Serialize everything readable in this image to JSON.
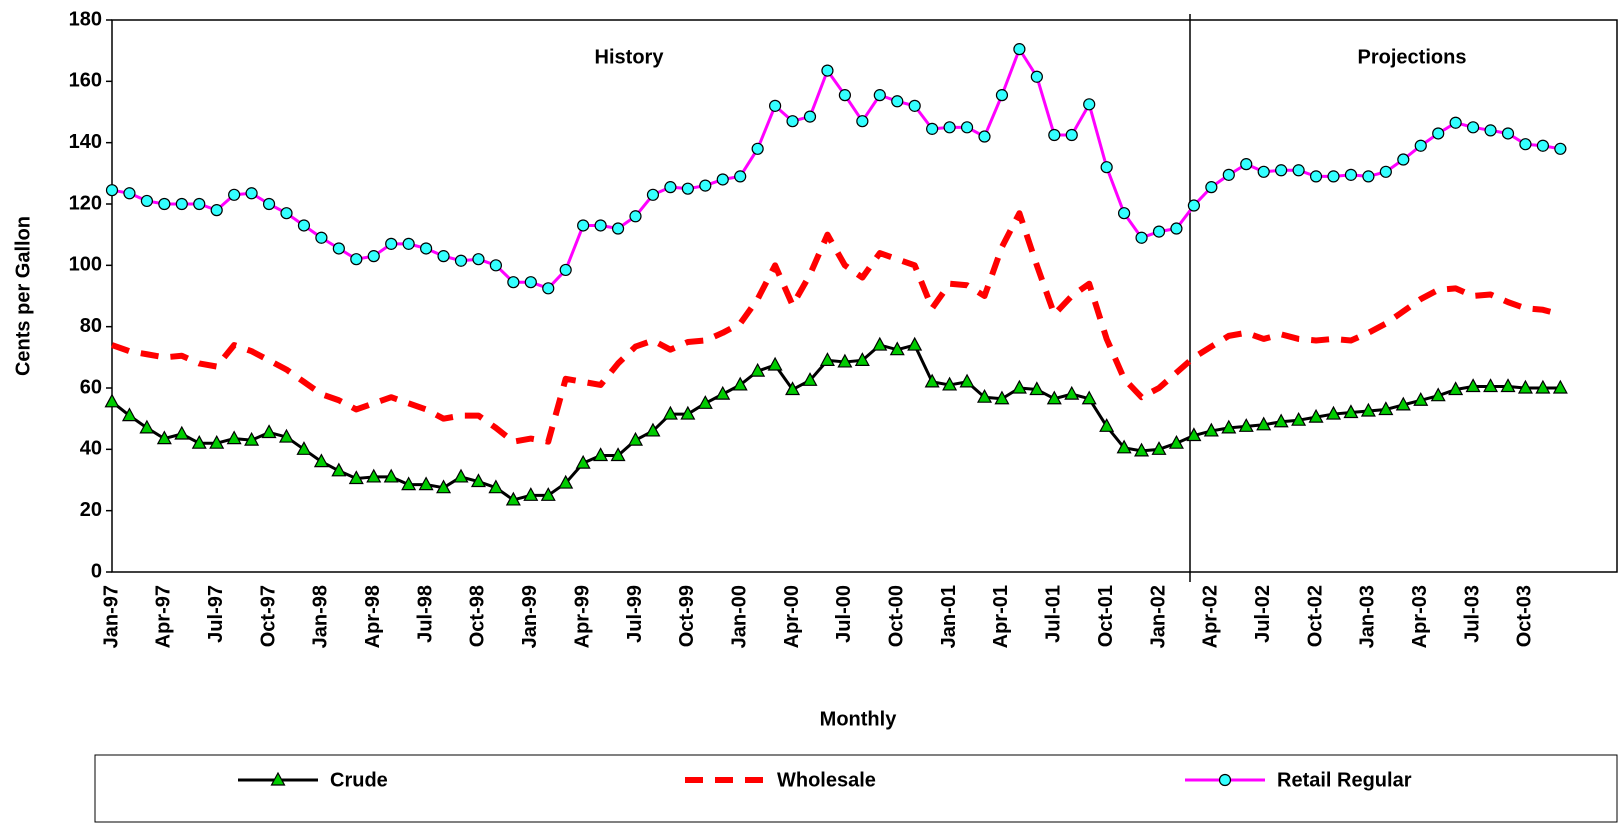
{
  "chart_data": {
    "type": "line",
    "x_label": "Monthly",
    "y_label": "Cents per Gallon",
    "annotations": [
      "History",
      "Projections"
    ],
    "categories": [
      "Jan-97",
      null,
      null,
      "Apr-97",
      null,
      null,
      "Jul-97",
      null,
      null,
      "Oct-97",
      null,
      null,
      "Jan-98",
      null,
      null,
      "Apr-98",
      null,
      null,
      "Jul-98",
      null,
      null,
      "Oct-98",
      null,
      null,
      "Jan-99",
      null,
      null,
      "Apr-99",
      null,
      null,
      "Jul-99",
      null,
      null,
      "Oct-99",
      null,
      null,
      "Jan-00",
      null,
      null,
      "Apr-00",
      null,
      null,
      "Jul-00",
      null,
      null,
      "Oct-00",
      null,
      null,
      "Jan-01",
      null,
      null,
      "Apr-01",
      null,
      null,
      "Jul-01",
      null,
      null,
      "Oct-01",
      null,
      null,
      "Jan-02",
      null,
      null,
      "Apr-02",
      null,
      null,
      "Jul-02",
      null,
      null,
      "Oct-02",
      null,
      null,
      "Jan-03",
      null,
      null,
      "Apr-03",
      null,
      null,
      "Jul-03",
      null,
      null,
      "Oct-03",
      null,
      null
    ],
    "series": [
      {
        "name": "Crude",
        "color": "#000000",
        "marker_color": "#00cc00",
        "marker": "triangle",
        "dashed": false,
        "values": [
          55.5,
          51,
          47,
          43.5,
          45,
          42,
          42,
          43.5,
          43,
          45.5,
          44,
          40,
          36,
          33,
          30.5,
          31,
          31,
          28.5,
          28.5,
          27.5,
          31,
          29.5,
          27.5,
          23.5,
          25,
          25,
          29,
          35.5,
          38,
          38,
          43,
          46,
          51.5,
          51.5,
          55,
          58,
          61,
          65.5,
          67.5,
          59.5,
          62.5,
          69,
          68.5,
          69,
          74,
          72.5,
          74,
          62,
          61,
          62,
          57,
          56.5,
          60,
          59.5,
          56.5,
          58,
          56.5,
          47.5,
          40.5,
          39.5,
          40,
          42,
          44.5,
          46,
          47,
          47.5,
          48,
          49,
          49.5,
          50.5,
          51.5,
          52,
          52.5,
          53,
          54.5,
          56,
          57.5,
          59.5,
          60.5,
          60.5,
          60.5,
          60,
          60,
          60
        ]
      },
      {
        "name": "Wholesale",
        "color": "#ff0000",
        "marker": "none",
        "dashed": true,
        "values": [
          74,
          72,
          71,
          70,
          70.5,
          68,
          67,
          74,
          72,
          69,
          66,
          62,
          58,
          56,
          53,
          55,
          57,
          55,
          53,
          50,
          51,
          51,
          47,
          42.5,
          43.5,
          42.5,
          63,
          62,
          61,
          68,
          73.5,
          75.5,
          72.5,
          75,
          75.5,
          78,
          81,
          89,
          100,
          87,
          97,
          110,
          100,
          96,
          104,
          102,
          100,
          86,
          94,
          93.5,
          90,
          106,
          117,
          100,
          84,
          90,
          94,
          76,
          63,
          57,
          60,
          65,
          70,
          73.5,
          77,
          78,
          76,
          77.5,
          76,
          75.5,
          76,
          75.5,
          78,
          81,
          85,
          89,
          92,
          92.5,
          90,
          90.5,
          88,
          86,
          85.5,
          84
        ]
      },
      {
        "name": "Retail Regular",
        "color": "#ff00ff",
        "marker_color": "#33ffff",
        "marker": "circle",
        "dashed": false,
        "values": [
          124.5,
          123.5,
          121,
          120,
          120,
          120,
          118,
          123,
          123.5,
          120,
          117,
          113,
          109,
          105.5,
          102,
          103,
          107,
          107,
          105.5,
          103,
          101.5,
          102,
          100,
          94.5,
          94.5,
          92.5,
          98.5,
          113,
          113,
          112,
          116,
          123,
          125.5,
          125,
          126,
          128,
          129,
          138,
          152,
          147,
          148.5,
          163.5,
          155.5,
          147,
          155.5,
          153.5,
          152,
          144.5,
          145,
          145,
          142,
          155.5,
          170.5,
          161.5,
          142.5,
          142.5,
          152.5,
          132,
          117,
          109,
          111,
          112,
          119.5,
          125.5,
          129.5,
          133,
          130.5,
          131,
          131,
          129,
          129,
          129.5,
          129,
          130.5,
          134.5,
          139,
          143,
          146.5,
          145,
          144,
          143,
          139.5,
          139,
          138
        ]
      }
    ],
    "ylim": [
      0,
      180
    ],
    "yticks": [
      0,
      20,
      40,
      60,
      80,
      100,
      120,
      140,
      160,
      180
    ],
    "grid": false,
    "legend": "bottom"
  }
}
